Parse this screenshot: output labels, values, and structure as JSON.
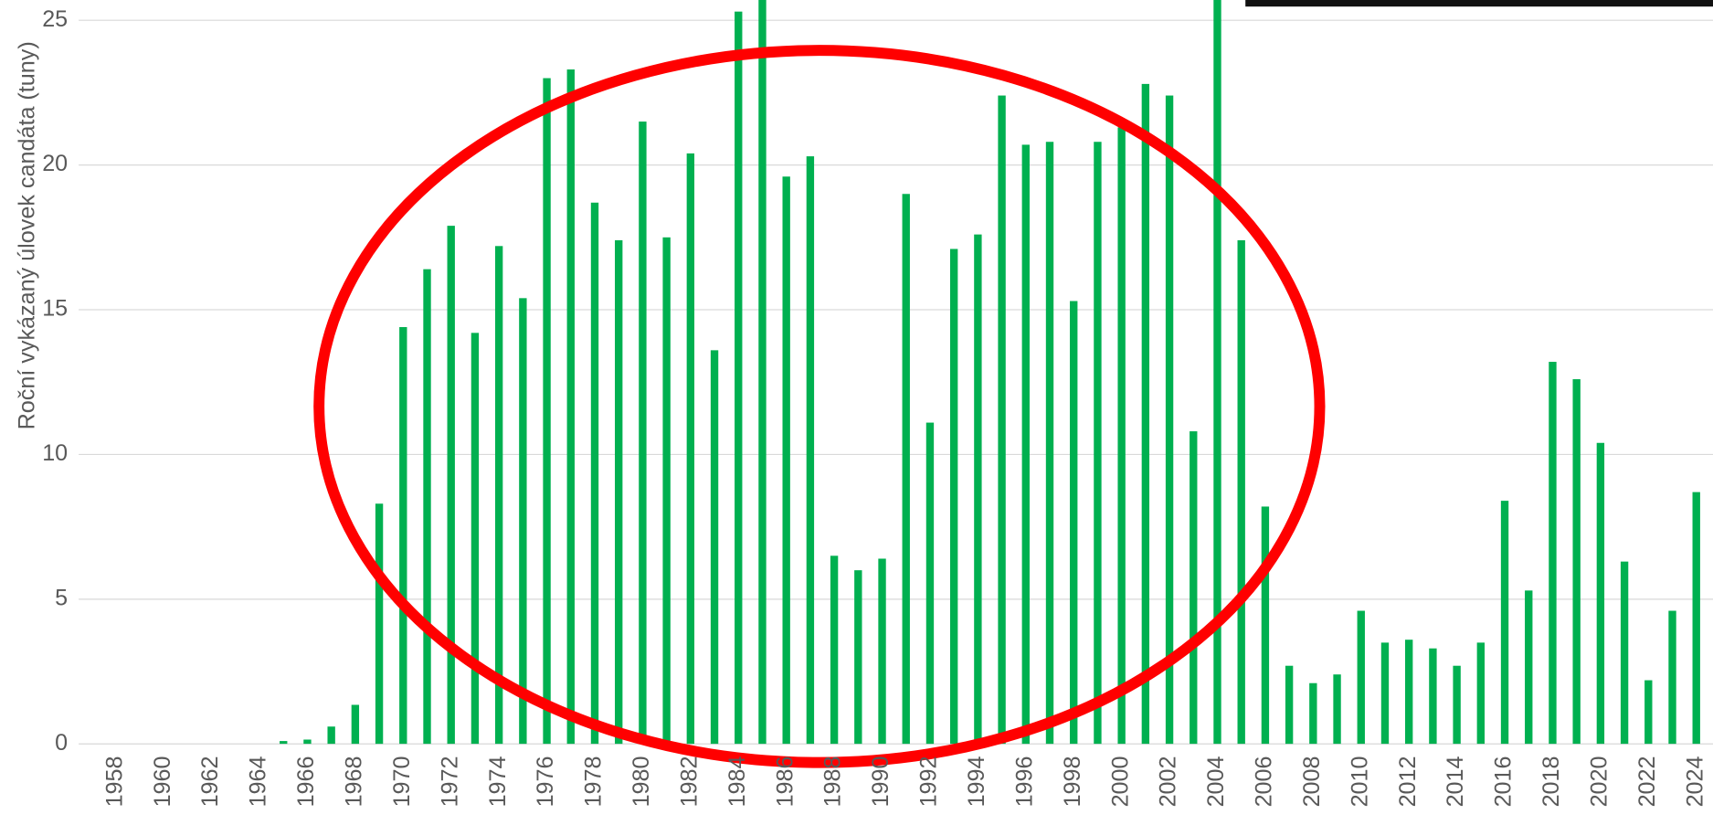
{
  "chart_data": {
    "type": "bar",
    "y_label": "Roční vykázaný úlovek candáta (tuny)",
    "categories": [
      "1958",
      null,
      "1960",
      null,
      "1962",
      null,
      "1964",
      null,
      "1966",
      null,
      "1968",
      null,
      "1970",
      null,
      "1972",
      null,
      "1974",
      null,
      "1976",
      null,
      "1978",
      null,
      "1980",
      null,
      "1982",
      null,
      "1984",
      null,
      "1986",
      null,
      "1988",
      null,
      "1990",
      null,
      "1992",
      null,
      "1994",
      null,
      "1996",
      null,
      "1998",
      null,
      "2000",
      null,
      "2002",
      null,
      "2004",
      null,
      "2006",
      null,
      "2008",
      null,
      "2010",
      null,
      "2012",
      null,
      "2014",
      null,
      "2016",
      null,
      "2018",
      null,
      "2020",
      null,
      "2022",
      null,
      "2024"
    ],
    "values": [
      0,
      0,
      0,
      0,
      0,
      0,
      0,
      0.1,
      0.15,
      0.6,
      1.35,
      8.3,
      14.4,
      16.4,
      17.9,
      14.2,
      17.2,
      15.4,
      23.0,
      23.3,
      18.7,
      17.4,
      21.5,
      17.5,
      20.4,
      13.6,
      25.3,
      27,
      19.6,
      20.3,
      6.5,
      6.0,
      6.4,
      19.0,
      11.1,
      17.1,
      17.6,
      22.4,
      20.7,
      20.8,
      15.3,
      20.8,
      21.3,
      22.8,
      22.4,
      10.8,
      27,
      17.4,
      8.2,
      2.7,
      2.1,
      2.4,
      4.6,
      3.5,
      3.6,
      3.3,
      2.7,
      3.5,
      8.4,
      5.3,
      13.2,
      12.6,
      10.4,
      6.3,
      2.2,
      4.6,
      8.7
    ],
    "color": "#00b050",
    "ylim": [
      0,
      25.7
    ],
    "yticks": [
      0,
      5,
      10,
      15,
      20,
      25
    ],
    "grid": true
  }
}
